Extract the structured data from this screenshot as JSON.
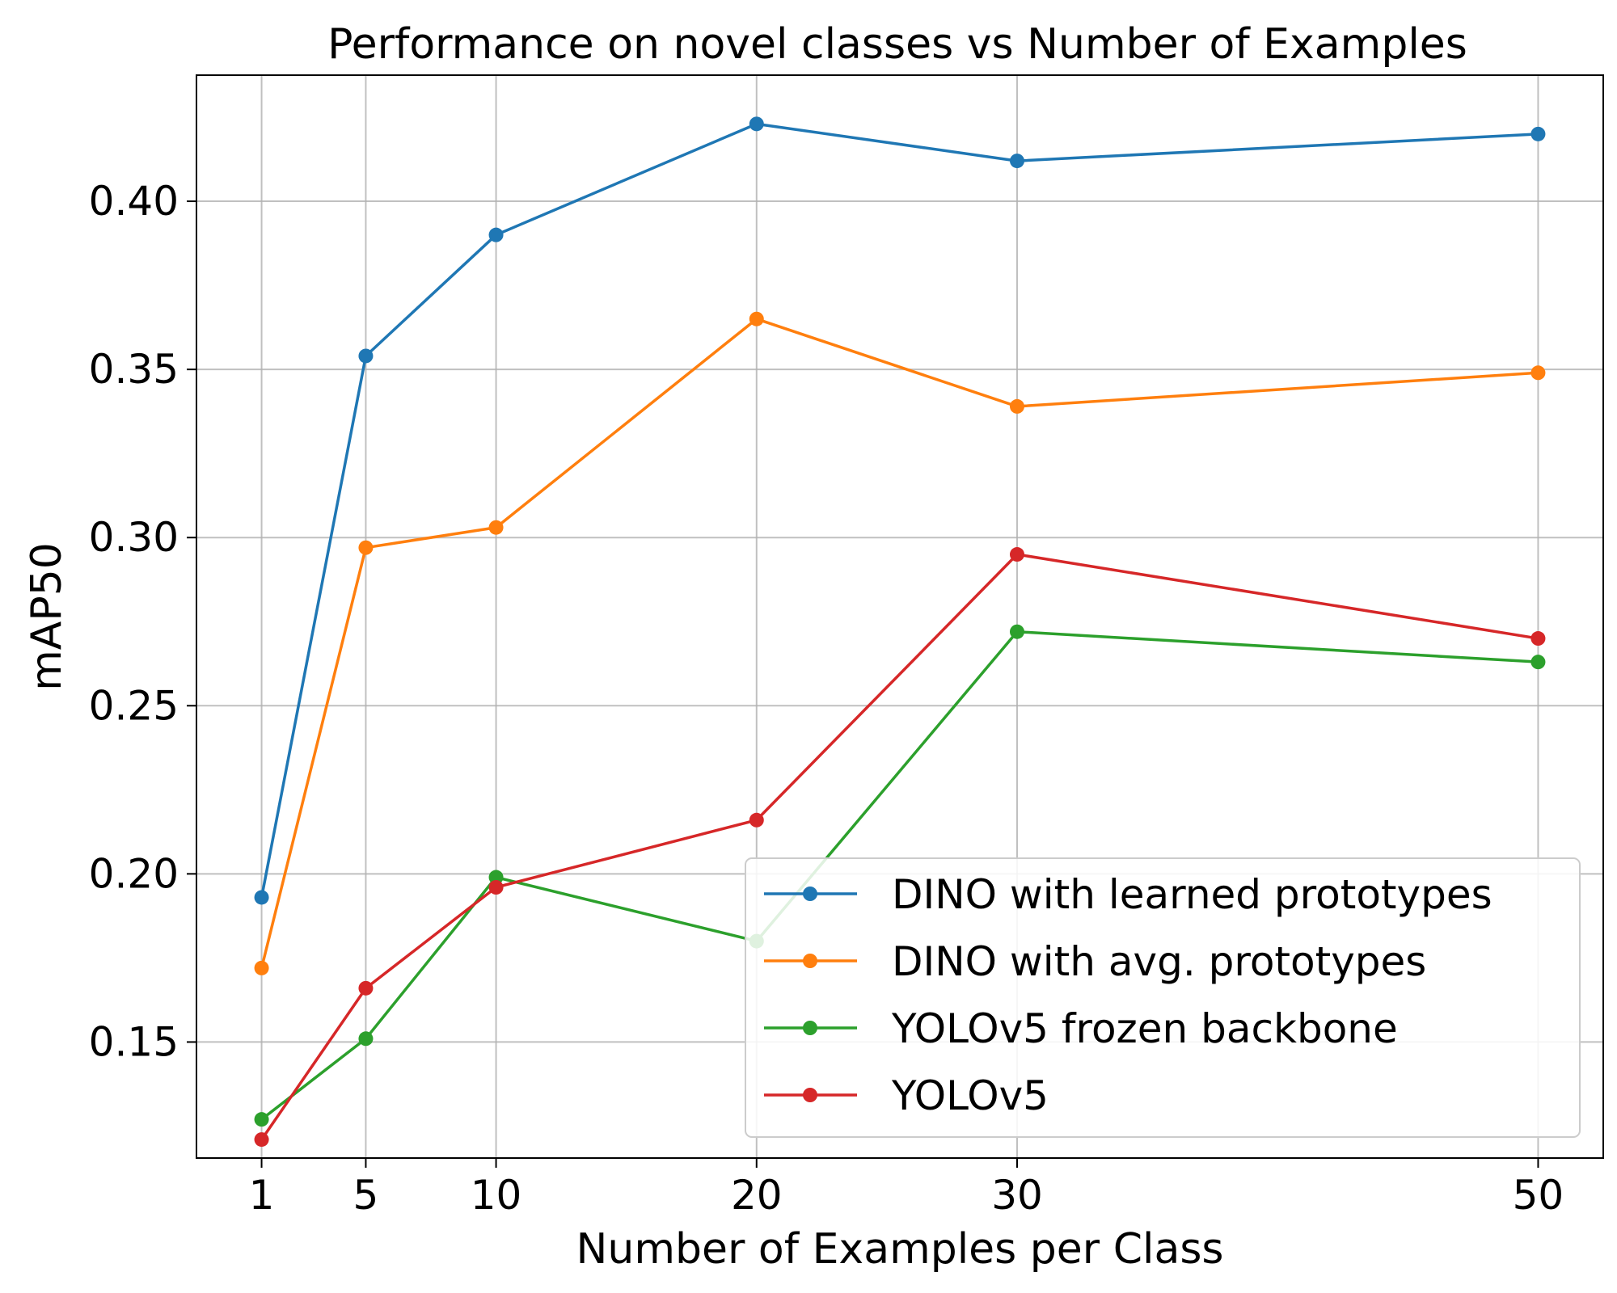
{
  "chart_data": {
    "type": "line",
    "title": "Performance on novel classes vs Number of Examples",
    "xlabel": "Number of Examples per Class",
    "ylabel": "mAP50",
    "x": [
      1,
      5,
      10,
      20,
      30,
      50
    ],
    "xticks": [
      "1",
      "5",
      "10",
      "20",
      "30",
      "50"
    ],
    "yticks": [
      0.15,
      0.2,
      0.25,
      0.3,
      0.35,
      0.4
    ],
    "ytick_labels": [
      "0.15",
      "0.20",
      "0.25",
      "0.30",
      "0.35",
      "0.40"
    ],
    "xlim": [
      -1.5,
      52.5
    ],
    "ylim": [
      0.1155,
      0.4375
    ],
    "grid": true,
    "legend_position": "lower-right",
    "series": [
      {
        "name": "DINO with learned prototypes",
        "color": "#1f77b4",
        "values": [
          0.193,
          0.354,
          0.39,
          0.423,
          0.412,
          0.42
        ]
      },
      {
        "name": "DINO with avg. prototypes",
        "color": "#ff7f0e",
        "values": [
          0.172,
          0.297,
          0.303,
          0.365,
          0.339,
          0.349
        ]
      },
      {
        "name": "YOLOv5 frozen backbone",
        "color": "#2ca02c",
        "values": [
          0.127,
          0.151,
          0.199,
          0.18,
          0.272,
          0.263
        ]
      },
      {
        "name": "YOLOv5",
        "color": "#d62728",
        "values": [
          0.121,
          0.166,
          0.196,
          0.216,
          0.295,
          0.27
        ]
      }
    ]
  }
}
